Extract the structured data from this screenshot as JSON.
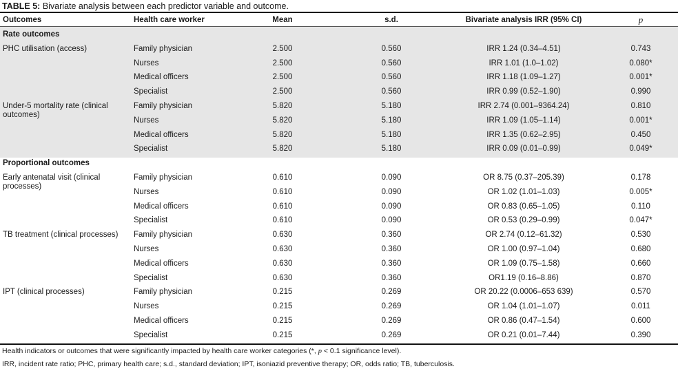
{
  "table": {
    "label": "TABLE 5:",
    "caption": "Bivariate analysis between each predictor variable and outcome.",
    "headers": [
      "Outcomes",
      "Health care worker",
      "Mean",
      "s.d.",
      "Bivariate analysis IRR (95% CI)",
      "p"
    ],
    "rows": [
      {
        "section": "Rate outcomes"
      },
      {
        "outcome": "PHC utilisation (access)",
        "worker": "Family physician",
        "mean": "2.500",
        "sd": "0.560",
        "ci": "IRR 1.24 (0.34–4.51)",
        "p": "0.743"
      },
      {
        "outcome": "",
        "worker": "Nurses",
        "mean": "2.500",
        "sd": "0.560",
        "ci": "IRR 1.01 (1.0–1.02)",
        "p": "0.080*"
      },
      {
        "outcome": "",
        "worker": "Medical officers",
        "mean": "2.500",
        "sd": "0.560",
        "ci": "IRR 1.18 (1.09–1.27)",
        "p": "0.001*"
      },
      {
        "outcome": "",
        "worker": "Specialist",
        "mean": "2.500",
        "sd": "0.560",
        "ci": "IRR 0.99 (0.52–1.90)",
        "p": "0.990"
      },
      {
        "outcome": "Under-5 mortality rate (clinical outcomes)",
        "worker": "Family physician",
        "mean": "5.820",
        "sd": "5.180",
        "ci": "IRR 2.74 (0.001–9364.24)",
        "p": "0.810"
      },
      {
        "outcome": "",
        "worker": "Nurses",
        "mean": "5.820",
        "sd": "5.180",
        "ci": "IRR 1.09 (1.05–1.14)",
        "p": "0.001*"
      },
      {
        "outcome": "",
        "worker": "Medical officers",
        "mean": "5.820",
        "sd": "5.180",
        "ci": "IRR 1.35 (0.62–2.95)",
        "p": "0.450"
      },
      {
        "outcome": "",
        "worker": "Specialist",
        "mean": "5.820",
        "sd": "5.180",
        "ci": "IRR 0.09 (0.01–0.99)",
        "p": "0.049*"
      },
      {
        "section": "Proportional outcomes"
      },
      {
        "outcome": "Early antenatal visit (clinical processes)",
        "worker": "Family physician",
        "mean": "0.610",
        "sd": "0.090",
        "ci": "OR 8.75 (0.37–205.39)",
        "p": "0.178"
      },
      {
        "outcome": "",
        "worker": "Nurses",
        "mean": "0.610",
        "sd": "0.090",
        "ci": "OR 1.02 (1.01–1.03)",
        "p": "0.005*"
      },
      {
        "outcome": "",
        "worker": "Medical officers",
        "mean": "0.610",
        "sd": "0.090",
        "ci": "OR 0.83 (0.65–1.05)",
        "p": "0.110"
      },
      {
        "outcome": "",
        "worker": "Specialist",
        "mean": "0.610",
        "sd": "0.090",
        "ci": "OR 0.53 (0.29–0.99)",
        "p": "0.047*"
      },
      {
        "outcome": "TB treatment (clinical processes)",
        "worker": "Family physician",
        "mean": "0.630",
        "sd": "0.360",
        "ci": "OR 2.74 (0.12–61.32)",
        "p": "0.530"
      },
      {
        "outcome": "",
        "worker": "Nurses",
        "mean": "0.630",
        "sd": "0.360",
        "ci": "OR 1.00 (0.97–1.04)",
        "p": "0.680"
      },
      {
        "outcome": "",
        "worker": "Medical officers",
        "mean": "0.630",
        "sd": "0.360",
        "ci": "OR 1.09 (0.75–1.58)",
        "p": "0.660"
      },
      {
        "outcome": "",
        "worker": "Specialist",
        "mean": "0.630",
        "sd": "0.360",
        "ci": "OR1.19 (0.16–8.86)",
        "p": "0.870"
      },
      {
        "outcome": "IPT (clinical processes)",
        "worker": "Family physician",
        "mean": "0.215",
        "sd": "0.269",
        "ci": "OR 20.22 (0.0006–653 639)",
        "p": "0.570"
      },
      {
        "outcome": "",
        "worker": "Nurses",
        "mean": "0.215",
        "sd": "0.269",
        "ci": "OR 1.04 (1.01–1.07)",
        "p": "0.011"
      },
      {
        "outcome": "",
        "worker": "Medical officers",
        "mean": "0.215",
        "sd": "0.269",
        "ci": "OR 0.86 (0.47–1.54)",
        "p": "0.600"
      },
      {
        "outcome": "",
        "worker": "Specialist",
        "mean": "0.215",
        "sd": "0.269",
        "ci": "OR 0.21 (0.01–7.44)",
        "p": "0.390"
      }
    ]
  },
  "footnotes": {
    "line1_a": "Health indicators or outcomes that were significantly impacted by health care worker categories (*, ",
    "line1_p": "p",
    "line1_b": " < 0.1 significance level).",
    "line2": "IRR, incident rate ratio; PHC, primary health care; s.d., standard deviation; IPT, isoniazid preventive therapy; OR, odds ratio; TB, tuberculosis."
  },
  "colors": {
    "shaded_band": "#e6e6e6",
    "rule": "#111111"
  }
}
